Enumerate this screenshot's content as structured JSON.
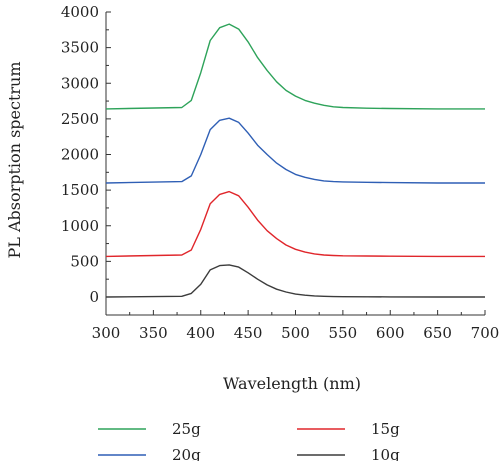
{
  "chart_data": {
    "type": "line",
    "title": "",
    "xlabel": "Wavelength (nm)",
    "ylabel": "PL Absorption spectrum",
    "xlim": [
      300,
      700
    ],
    "ylim": [
      0,
      4000
    ],
    "xticks": [
      300,
      350,
      400,
      450,
      500,
      550,
      600,
      650,
      700
    ],
    "yticks": [
      0,
      500,
      1000,
      1500,
      2000,
      2500,
      3000,
      3500,
      4000
    ],
    "grid": false,
    "legend_position": "bottom",
    "x": [
      300,
      380,
      390,
      400,
      410,
      420,
      430,
      440,
      450,
      460,
      470,
      480,
      490,
      500,
      510,
      520,
      530,
      540,
      550,
      575,
      600,
      650,
      700
    ],
    "series": [
      {
        "name": "25g",
        "color": "#2ea35a",
        "values": [
          2640,
          2660,
          2760,
          3150,
          3600,
          3780,
          3830,
          3760,
          3580,
          3360,
          3180,
          3020,
          2900,
          2820,
          2760,
          2720,
          2690,
          2670,
          2660,
          2650,
          2645,
          2640,
          2640
        ]
      },
      {
        "name": "20g",
        "color": "#2f5fb5",
        "values": [
          1600,
          1620,
          1700,
          2000,
          2350,
          2480,
          2510,
          2450,
          2300,
          2130,
          2000,
          1880,
          1790,
          1720,
          1680,
          1650,
          1630,
          1620,
          1615,
          1610,
          1605,
          1600,
          1600
        ]
      },
      {
        "name": "15g",
        "color": "#e0262b",
        "values": [
          570,
          590,
          660,
          950,
          1310,
          1440,
          1480,
          1420,
          1260,
          1080,
          930,
          820,
          730,
          670,
          630,
          605,
          590,
          582,
          578,
          575,
          572,
          570,
          570
        ]
      },
      {
        "name": "10g",
        "color": "#3c3c3c",
        "values": [
          0,
          10,
          50,
          180,
          380,
          440,
          450,
          420,
          340,
          250,
          170,
          110,
          70,
          40,
          25,
          15,
          10,
          6,
          4,
          3,
          2,
          0,
          0
        ]
      }
    ]
  }
}
